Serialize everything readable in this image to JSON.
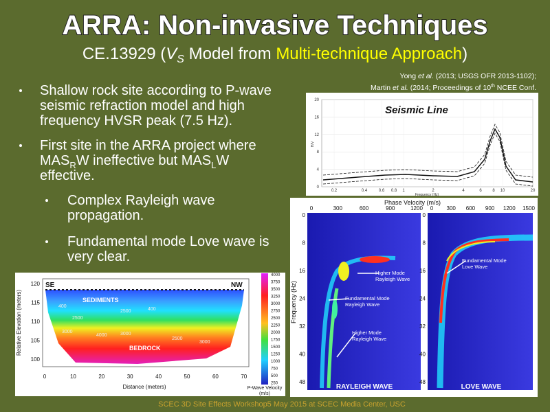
{
  "header": {
    "title": "ARRA: Non-invasive Techniques",
    "subtitle": {
      "prefix": "CE.13929 (",
      "symbol": "V",
      "subscript": "S",
      "middle": " Model from ",
      "highlight": "Multi-technique Approach",
      "suffix": ")"
    }
  },
  "citations": [
    {
      "author": "Yong ",
      "etal": "et al.",
      "rest": " (2013; USGS OFR 2013-1102);"
    },
    {
      "author": "Martin ",
      "etal": "et al.",
      "rest": " (2014; Proceedings of 10",
      "sup": "th",
      "end": " NCEE Conf."
    }
  ],
  "bullets": [
    {
      "lines": [
        [
          "Shallow rock site according to P-wave"
        ],
        [
          "seismic refraction model and high"
        ],
        [
          "frequency HVSR peak (7.5 Hz)."
        ]
      ]
    },
    {
      "lines": [
        [
          "First site in the ARRA project where"
        ],
        [
          "MAS",
          "R",
          "W ineffective but MAS",
          "L",
          "W"
        ],
        [
          "effective."
        ]
      ]
    },
    {
      "lines": [
        [
          "Complex Rayleigh wave"
        ],
        [
          "propagation."
        ]
      ]
    },
    {
      "lines": [
        [
          "Fundamental mode Love wave is"
        ],
        [
          "very clear."
        ]
      ]
    }
  ],
  "hvsr": {
    "title": "Seismic Line",
    "y_label": "H/V",
    "x_label": "Frequency (Hz)",
    "yticks": [
      0,
      4,
      8,
      12,
      16,
      20
    ],
    "xticks": [
      0.2,
      0.4,
      0.6,
      0.8,
      1,
      2,
      4,
      6,
      8,
      10,
      20
    ]
  },
  "dispersion": {
    "x_label": "Phase Velocity (m/s)",
    "y_label": "Frequency (Hz)",
    "left_xticks": [
      0,
      300,
      600,
      900,
      1200
    ],
    "right_xticks": [
      0,
      300,
      600,
      900,
      1200,
      1500
    ],
    "yticks": [
      0,
      8,
      16,
      24,
      32,
      40,
      48
    ],
    "annotations": [
      [
        "Higher Mode",
        "Rayleigh Wave"
      ],
      [
        "Fundamental Mode",
        "Rayleigh Wave"
      ],
      [
        "Higher Mode",
        "Rayleigh Wave"
      ],
      [
        "Fundamental Mode",
        "Love Wave"
      ]
    ],
    "panel_labels": [
      "RAYLEIGH WAVE",
      "LOVE WAVE"
    ]
  },
  "cross_section": {
    "left_label": "SE",
    "right_label": "NW",
    "layers": [
      "SEDIMENTS",
      "BEDROCK"
    ],
    "contour_labels": [
      400,
      2500,
      3000,
      4000,
      3000,
      2500,
      3000,
      400,
      2500
    ],
    "y_label": "Relative Elevation (meters)",
    "yticks": [
      120,
      115,
      110,
      105,
      100
    ],
    "x_label": "Distance (meters)",
    "xticks": [
      0,
      10,
      20,
      30,
      40,
      50,
      60,
      70
    ],
    "colorbar_ticks": [
      4000,
      3750,
      3500,
      3250,
      3000,
      2750,
      2500,
      2250,
      2000,
      1750,
      1500,
      1250,
      1000,
      750,
      500,
      250
    ],
    "colorbar_label": [
      "P-Wave Velocity",
      "(m/s)"
    ]
  },
  "footer": "SCEC 3D Site Effects Workshop5 May 2015 at SCEC Media Center, USC"
}
